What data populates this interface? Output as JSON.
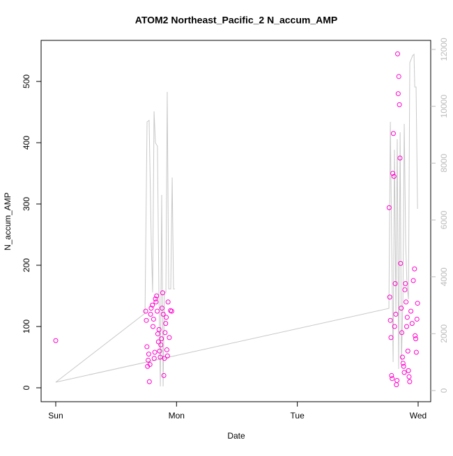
{
  "chart_data": {
    "type": "scatter",
    "title": "ATOM2 Northeast_Pacific_2 N_accum_AMP",
    "x_label": "Date",
    "y_label": "N_accum_AMP",
    "xlim": [
      -0.121,
      3.104
    ],
    "xticks": [
      {
        "value": 0,
        "label": "Sun"
      },
      {
        "value": 1,
        "label": "Mon"
      },
      {
        "value": 2,
        "label": "Tue"
      },
      {
        "value": 3,
        "label": "Wed"
      }
    ],
    "ylim": [
      -22.7,
      567
    ],
    "yticks": [
      0,
      100,
      200,
      300,
      400,
      500
    ],
    "y2lim": [
      -392,
      12318
    ],
    "y2ticks": [
      0,
      2000,
      4000,
      6000,
      8000,
      10000,
      12000
    ],
    "series": [
      {
        "type": "scatter",
        "color": "#ff00cc",
        "x": [
          0,
          0.745,
          0.75,
          0.755,
          0.76,
          0.765,
          0.77,
          0.775,
          0.78,
          0.785,
          0.79,
          0.8,
          0.805,
          0.81,
          0.815,
          0.82,
          0.825,
          0.83,
          0.835,
          0.84,
          0.845,
          0.85,
          0.855,
          0.86,
          0.865,
          0.87,
          0.875,
          0.88,
          0.885,
          0.89,
          0.895,
          0.9,
          0.905,
          0.91,
          0.915,
          0.92,
          0.925,
          0.93,
          0.94,
          0.95,
          0.96,
          2.76,
          2.765,
          2.77,
          2.775,
          2.78,
          2.785,
          2.79,
          2.795,
          2.8,
          2.805,
          2.81,
          2.815,
          2.82,
          2.825,
          2.83,
          2.835,
          2.84,
          2.845,
          2.85,
          2.855,
          2.86,
          2.865,
          2.87,
          2.875,
          2.88,
          2.885,
          2.89,
          2.895,
          2.9,
          2.905,
          2.91,
          2.915,
          2.92,
          2.925,
          2.93,
          2.94,
          2.95,
          2.96,
          2.97,
          2.975,
          2.98,
          2.985,
          2.99,
          2.995
        ],
        "values": [
          77,
          125,
          110,
          67,
          35,
          45,
          55,
          10,
          38,
          120,
          130,
          135,
          100,
          112,
          48,
          58,
          145,
          140,
          150,
          125,
          88,
          75,
          95,
          60,
          50,
          70,
          80,
          130,
          155,
          120,
          20,
          48,
          90,
          105,
          115,
          62,
          52,
          140,
          82,
          126,
          125,
          294,
          148,
          110,
          82,
          20,
          15,
          350,
          415,
          345,
          100,
          170,
          120,
          5,
          12,
          545,
          480,
          508,
          462,
          375,
          203,
          130,
          90,
          50,
          40,
          35,
          25,
          160,
          170,
          140,
          100,
          115,
          60,
          28,
          18,
          10,
          125,
          105,
          175,
          194,
          85,
          80,
          58,
          112,
          138
        ]
      },
      {
        "type": "line",
        "axis": "y2",
        "color": "#c8c8c8",
        "x": [
          0,
          0.739,
          0.756,
          0.773,
          0.791,
          0.802,
          0.814,
          0.825,
          0.842,
          0.854,
          0.866,
          0.877,
          0.889,
          0.9,
          0.912,
          0.923,
          0.935,
          0.952,
          0.964,
          0.975,
          0.987,
          null,
          0,
          2.758,
          2.77,
          2.781,
          2.793,
          2.804,
          2.816,
          2.827,
          2.839,
          2.851,
          2.862,
          2.874,
          2.885,
          2.897,
          2.908,
          2.92,
          2.931,
          2.943,
          2.954,
          2.966,
          2.972,
          2.983,
          2.995
        ],
        "values": [
          294,
          2718,
          9453,
          9502,
          5167,
          3453,
          9820,
          8718,
          8595,
          3453,
          147,
          6882,
          147,
          3453,
          3453,
          10506,
          3576,
          3576,
          7494,
          3576,
          3576,
          null,
          294,
          2890,
          9453,
          5167,
          1004,
          8474,
          2718,
          8841,
          759,
          9086,
          1004,
          3208,
          9380,
          5167,
          3698,
          3208,
          11535,
          11657,
          11780,
          11829,
          10678,
          10678,
          6392
        ]
      }
    ]
  }
}
